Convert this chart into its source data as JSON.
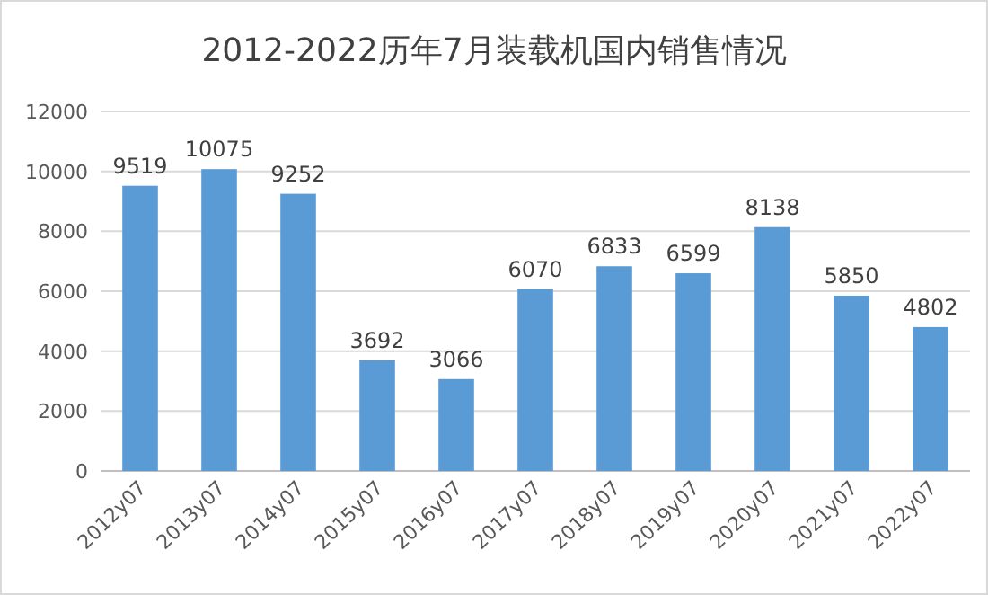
{
  "chart_data": {
    "type": "bar",
    "title": "2012-2022历年7月装载机国内销售情况",
    "categories": [
      "2012y07",
      "2013y07",
      "2014y07",
      "2015y07",
      "2016y07",
      "2017y07",
      "2018y07",
      "2019y07",
      "2020y07",
      "2021y07",
      "2022y07"
    ],
    "values": [
      9519,
      10075,
      9252,
      3692,
      3066,
      6070,
      6833,
      6599,
      8138,
      5850,
      4802
    ],
    "color": "#5b9bd5",
    "ylim": [
      0,
      12000
    ],
    "yticks": [
      0,
      2000,
      4000,
      6000,
      8000,
      10000,
      12000
    ],
    "grid": "y",
    "data_labels": true
  }
}
